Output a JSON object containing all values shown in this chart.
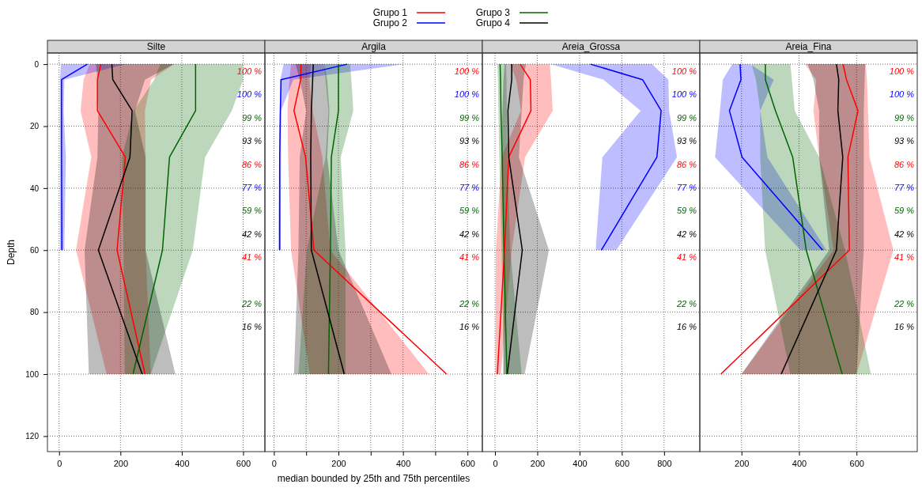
{
  "chart_data": [
    {
      "type": "line",
      "orientation": "horizontal",
      "title": "Silte",
      "ylabel": "Depth",
      "legend": "top",
      "grid": true,
      "xlim": [
        -38,
        671
      ],
      "xticks": [
        0,
        200,
        400,
        600
      ],
      "ylim": [
        125,
        -3.6
      ],
      "yticks": [
        0,
        20,
        40,
        60,
        80,
        100,
        120
      ],
      "series": [
        {
          "name": "Grupo 1",
          "color": "#ff0000",
          "x": [
            0,
            5,
            15,
            30,
            60,
            100
          ],
          "values": [
            136,
            125,
            125,
            216,
            189,
            280
          ],
          "lower": [
            100,
            80,
            70,
            105,
            55,
            155
          ],
          "upper": [
            375,
            300,
            280,
            282,
            282,
            299
          ]
        },
        {
          "name": "Grupo 2",
          "color": "#0000ff",
          "x": [
            0,
            5,
            15,
            30,
            60
          ],
          "values": [
            92,
            8,
            8,
            8,
            9
          ],
          "lower": [
            6,
            3,
            3,
            3,
            3
          ],
          "upper": [
            220,
            17,
            15,
            22,
            17
          ]
        },
        {
          "name": "Grupo 3",
          "color": "#006400",
          "x": [
            0,
            5,
            15,
            30,
            60,
            100
          ],
          "values": [
            445,
            445,
            445,
            360,
            337,
            241
          ],
          "lower": [
            330,
            310,
            243,
            205,
            210,
            214
          ],
          "upper": [
            600,
            600,
            563,
            476,
            436,
            299
          ]
        },
        {
          "name": "Grupo 4",
          "color": "#000000",
          "x": [
            0,
            5,
            15,
            30,
            60,
            100
          ],
          "values": [
            172,
            175,
            238,
            231,
            128,
            271
          ],
          "lower": [
            120,
            125,
            128,
            125,
            83,
            97
          ],
          "upper": [
            374,
            280,
            247,
            282,
            282,
            379
          ]
        }
      ],
      "annotations": [
        "100 %",
        "100 %",
        "99 %",
        "93 %",
        "86 %",
        "77 %",
        "59 %",
        "42 %",
        "41 %",
        null,
        "22 %",
        "16 %"
      ]
    },
    {
      "type": "line",
      "orientation": "horizontal",
      "title": "Argila",
      "xlabel": "median bounded by 25th and 75th percentiles",
      "grid": true,
      "tick_labels": "x",
      "xlim": [
        -28,
        646
      ],
      "xticks": [
        0,
        {
          "value": 100,
          "label": null
        },
        200,
        {
          "value": 300,
          "label": null
        },
        400,
        {
          "value": 500,
          "label": null
        },
        600
      ],
      "ylim": [
        125,
        -3.6
      ],
      "yticks": [
        0,
        20,
        40,
        60,
        80,
        100,
        120
      ],
      "series": [
        {
          "color": "#ff0000",
          "x": [
            0,
            5,
            15,
            30,
            60,
            100
          ],
          "values": [
            84,
            83,
            62,
            98,
            124,
            535
          ],
          "lower": [
            53,
            48,
            42,
            44,
            53,
            111
          ],
          "upper": [
            115,
            110,
            120,
            150,
            175,
            480
          ]
        },
        {
          "color": "#0000ff",
          "x": [
            0,
            5,
            15,
            30,
            60
          ],
          "values": [
            227,
            22,
            20,
            18,
            18
          ],
          "lower": [
            30,
            20,
            18,
            16,
            13
          ],
          "upper": [
            404,
            60,
            22,
            22,
            20
          ]
        },
        {
          "color": "#006400",
          "x": [
            0,
            5,
            15,
            30,
            60,
            100
          ],
          "values": [
            200,
            200,
            200,
            178,
            175,
            169
          ],
          "lower": [
            156,
            160,
            169,
            160,
            102,
            76
          ],
          "upper": [
            236,
            240,
            246,
            207,
            222,
            222
          ]
        },
        {
          "color": "#000000",
          "x": [
            0,
            5,
            15,
            30,
            60,
            100
          ],
          "values": [
            122,
            120,
            116,
            114,
            116,
            218
          ],
          "lower": [
            67,
            80,
            100,
            80,
            76,
            62
          ],
          "upper": [
            156,
            165,
            172,
            165,
            200,
            364
          ]
        }
      ],
      "annotations": [
        "100 %",
        "100 %",
        "99 %",
        "93 %",
        "86 %",
        "77 %",
        "59 %",
        "42 %",
        "41 %",
        null,
        "22 %",
        "16 %"
      ]
    },
    {
      "type": "line",
      "orientation": "horizontal",
      "title": "Areia_Grossa",
      "grid": true,
      "tick_labels": "x",
      "xlim": [
        -60,
        969
      ],
      "xticks": [
        0,
        200,
        400,
        600,
        800
      ],
      "ylim": [
        125,
        -3.6
      ],
      "yticks": [
        0,
        20,
        40,
        60,
        80,
        100,
        120
      ],
      "series": [
        {
          "color": "#ff0000",
          "x": [
            0,
            5,
            15,
            30,
            60,
            100
          ],
          "values": [
            119,
            167,
            170,
            65,
            45,
            11
          ],
          "lower": [
            72,
            100,
            123,
            31,
            4,
            1
          ],
          "upper": [
            259,
            265,
            273,
            142,
            79,
            28
          ]
        },
        {
          "color": "#0000ff",
          "x": [
            0,
            5,
            15,
            30,
            60
          ],
          "values": [
            452,
            698,
            786,
            766,
            503
          ],
          "lower": [
            262,
            513,
            689,
            508,
            476
          ],
          "upper": [
            743,
            820,
            824,
            861,
            574
          ]
        },
        {
          "color": "#006400",
          "x": [
            0,
            5,
            15,
            30,
            60,
            100
          ],
          "values": [
            24,
            26,
            28,
            34,
            42,
            56
          ],
          "lower": [
            11,
            14,
            16,
            20,
            31,
            42
          ],
          "upper": [
            52,
            54,
            56,
            58,
            72,
            126
          ]
        },
        {
          "color": "#000000",
          "x": [
            0,
            5,
            15,
            30,
            60,
            100
          ],
          "values": [
            79,
            79,
            61,
            65,
            129,
            58
          ],
          "lower": [
            45,
            40,
            35,
            31,
            45,
            38
          ],
          "upper": [
            146,
            135,
            126,
            113,
            255,
            140
          ]
        }
      ],
      "annotations": [
        "100 %",
        "100 %",
        "99 %",
        "93 %",
        "86 %",
        "77 %",
        "59 %",
        "42 %",
        "41 %",
        null,
        "22 %",
        "16 %"
      ]
    },
    {
      "type": "line",
      "orientation": "horizontal",
      "title": "Areia_Fina",
      "grid": true,
      "tick_labels": "x",
      "xlim": [
        55,
        811
      ],
      "xticks": [
        200,
        400,
        600
      ],
      "ylim": [
        125,
        -3.6
      ],
      "yticks": [
        0,
        20,
        40,
        60,
        80,
        100,
        120
      ],
      "series": [
        {
          "color": "#ff0000",
          "x": [
            0,
            5,
            15,
            30,
            60,
            100
          ],
          "values": [
            553,
            565,
            605,
            570,
            575,
            128
          ],
          "lower": [
            420,
            460,
            450,
            470,
            520,
            200
          ],
          "upper": [
            632,
            636,
            640,
            645,
            728,
            600
          ]
        },
        {
          "color": "#0000ff",
          "x": [
            0,
            5,
            15,
            30,
            60
          ],
          "values": [
            195,
            198,
            158,
            202,
            482
          ],
          "lower": [
            168,
            135,
            125,
            108,
            405
          ],
          "upper": [
            230,
            312,
            265,
            290,
            495
          ]
        },
        {
          "color": "#006400",
          "x": [
            0,
            5,
            15,
            30,
            60,
            100
          ],
          "values": [
            283,
            283,
            318,
            378,
            425,
            550
          ],
          "lower": [
            235,
            250,
            265,
            265,
            282,
            370
          ],
          "upper": [
            370,
            375,
            385,
            470,
            560,
            650
          ]
        },
        {
          "color": "#000000",
          "x": [
            0,
            5,
            15,
            30,
            60,
            100
          ],
          "values": [
            530,
            538,
            535,
            552,
            530,
            338
          ],
          "lower": [
            430,
            450,
            470,
            470,
            505,
            200
          ],
          "upper": [
            630,
            628,
            625,
            625,
            625,
            600
          ]
        }
      ],
      "annotations": [
        "100 %",
        "100 %",
        "99 %",
        "93 %",
        "86 %",
        "77 %",
        "59 %",
        "42 %",
        "41 %",
        null,
        "22 %",
        "16 %"
      ]
    }
  ]
}
